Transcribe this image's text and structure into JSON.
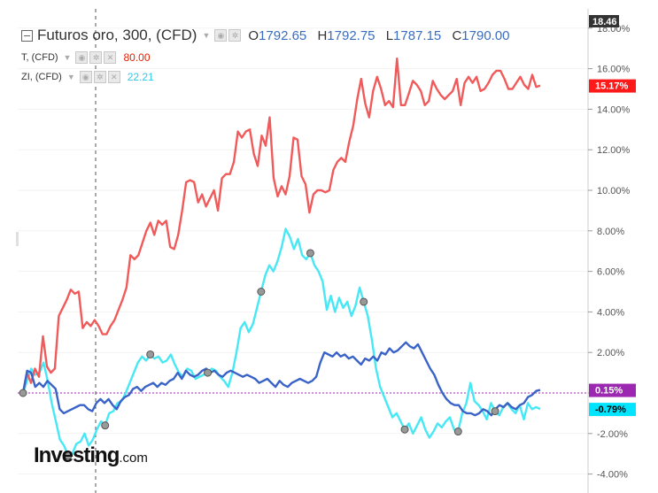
{
  "legend": {
    "main": {
      "symbol": "Futuros oro, 300, (CFD)",
      "o_label": "O",
      "o": "1792.65",
      "h_label": "H",
      "h": "1792.75",
      "l_label": "L",
      "l": "1787.15",
      "c_label": "C",
      "c": "1790.00"
    },
    "series_t": {
      "name": "T, (CFD)",
      "value": "80.00"
    },
    "series_zi": {
      "name": "ZI, (CFD)",
      "value": "22.21"
    }
  },
  "logo": {
    "brand": "Investing",
    "suffix": ".com"
  },
  "colors": {
    "gold": "#3a63c8",
    "t": "#f05a5a",
    "zi": "#46e8f5",
    "zero": "#9c27b0",
    "t_badge": "#ff1a1a",
    "zi_badge": "#00e5ff",
    "zero_badge": "#9c27b0"
  },
  "chart_data": {
    "type": "line",
    "y_unit": "%",
    "ylim": [
      -4,
      18
    ],
    "y_ticks": [
      "-4.00%",
      "-2.00%",
      "0.00%",
      "2.00%",
      "4.00%",
      "6.00%",
      "8.00%",
      "10.00%",
      "12.00%",
      "14.00%",
      "16.00%",
      "18.00%"
    ],
    "top_label": "18.46",
    "last_value_labels": [
      {
        "series": "T, (CFD)",
        "text": "15.17%"
      },
      {
        "series": "Futuros oro, 300, (CFD)",
        "text": "0.15%"
      },
      {
        "series": "ZI, (CFD)",
        "text": "-0.79%"
      }
    ],
    "series": [
      {
        "name": "T, (CFD)",
        "color": "#f05a5a",
        "values": [
          0,
          1.0,
          0.5,
          1.2,
          0.8,
          2.8,
          1.3,
          1.0,
          1.2,
          3.8,
          4.2,
          4.6,
          5.1,
          4.9,
          5.0,
          3.2,
          3.5,
          3.3,
          3.6,
          3.3,
          2.9,
          2.9,
          3.3,
          3.6,
          4.1,
          4.6,
          5.2,
          6.8,
          6.6,
          6.8,
          7.4,
          8.0,
          8.4,
          7.8,
          8.5,
          8.3,
          8.5,
          7.2,
          7.1,
          7.8,
          9.0,
          10.4,
          10.5,
          10.4,
          9.4,
          9.8,
          9.2,
          9.6,
          10.0,
          9.0,
          10.6,
          10.8,
          10.8,
          11.4,
          12.9,
          12.6,
          12.9,
          13.0,
          11.8,
          11.2,
          12.7,
          12.2,
          13.6,
          10.6,
          9.7,
          10.2,
          9.8,
          10.7,
          12.6,
          12.5,
          10.7,
          10.3,
          8.9,
          9.8,
          10.0,
          10.0,
          9.9,
          10.0,
          11.0,
          11.4,
          11.6,
          11.4,
          12.4,
          13.2,
          14.5,
          15.5,
          14.3,
          13.6,
          14.9,
          15.6,
          15.0,
          14.2,
          14.4,
          14.1,
          16.5,
          14.2,
          14.2,
          14.8,
          15.4,
          15.2,
          14.9,
          14.2,
          14.4,
          15.4,
          15.0,
          14.7,
          14.5,
          14.7,
          14.9,
          15.5,
          14.2,
          15.3,
          15.6,
          15.3,
          15.6,
          14.9,
          15.0,
          15.3,
          15.7,
          15.9,
          15.9,
          15.5,
          15.0,
          15.0,
          15.3,
          15.6,
          15.2,
          15.0,
          15.7,
          15.1,
          15.17
        ]
      },
      {
        "name": "Futuros oro, 300, (CFD)",
        "color": "#3a63c8",
        "values": [
          0,
          1.1,
          1.0,
          0.3,
          0.5,
          0.3,
          0.6,
          0.4,
          0.2,
          -0.8,
          -1.0,
          -0.9,
          -0.8,
          -0.7,
          -0.6,
          -0.6,
          -0.8,
          -0.9,
          -0.5,
          -0.3,
          -0.5,
          -0.3,
          -0.6,
          -0.8,
          -0.4,
          -0.2,
          -0.1,
          0.2,
          0.3,
          0.1,
          0.3,
          0.4,
          0.5,
          0.3,
          0.5,
          0.4,
          0.6,
          0.7,
          1.0,
          0.7,
          1.1,
          0.9,
          0.8,
          0.9,
          1.1,
          1.2,
          1.0,
          1.1,
          0.9,
          0.8,
          1.0,
          1.1,
          1.0,
          0.9,
          0.8,
          0.9,
          0.8,
          0.7,
          0.5,
          0.6,
          0.7,
          0.5,
          0.3,
          0.6,
          0.4,
          0.3,
          0.5,
          0.6,
          0.7,
          0.6,
          0.5,
          0.6,
          0.8,
          1.5,
          2.0,
          1.9,
          1.8,
          2.0,
          1.8,
          1.9,
          1.7,
          1.8,
          1.6,
          1.4,
          1.7,
          1.6,
          1.8,
          1.6,
          2.0,
          1.9,
          2.2,
          2.0,
          2.1,
          2.3,
          2.5,
          2.3,
          2.2,
          2.4,
          2.0,
          1.6,
          1.2,
          0.9,
          0.4,
          0.0,
          -0.3,
          -0.5,
          -0.6,
          -0.6,
          -0.9,
          -1.0,
          -1.0,
          -1.1,
          -1.0,
          -0.8,
          -0.9,
          -1.1,
          -0.8,
          -0.6,
          -0.7,
          -0.5,
          -0.7,
          -0.8,
          -0.6,
          -0.5,
          -0.2,
          -0.1,
          0.1,
          0.15
        ]
      },
      {
        "name": "ZI, (CFD)",
        "color": "#46e8f5",
        "values": [
          0,
          0.6,
          1.2,
          0.9,
          1.0,
          1.5,
          0.6,
          -0.5,
          -1.4,
          -2.3,
          -2.6,
          -3.1,
          -3.0,
          -2.5,
          -2.4,
          -2.0,
          -2.6,
          -2.3,
          -1.8,
          -1.4,
          -1.6,
          -1.0,
          -0.9,
          -0.5,
          -0.4,
          0.0,
          0.5,
          1.0,
          1.5,
          1.8,
          1.6,
          1.9,
          1.7,
          1.8,
          1.5,
          1.6,
          1.9,
          1.4,
          1.0,
          0.8,
          1.2,
          1.1,
          0.7,
          0.8,
          0.9,
          1.0,
          1.2,
          1.1,
          0.8,
          0.6,
          0.3,
          1.0,
          2.0,
          3.2,
          3.5,
          3.0,
          3.4,
          4.2,
          5.0,
          5.8,
          6.3,
          6.0,
          6.5,
          7.2,
          8.1,
          7.7,
          7.1,
          7.6,
          6.8,
          6.6,
          6.9,
          6.3,
          6.0,
          5.5,
          4.1,
          4.8,
          4.0,
          4.7,
          4.2,
          4.5,
          3.8,
          4.3,
          5.2,
          4.5,
          3.8,
          2.6,
          1.2,
          0.3,
          -0.2,
          -0.7,
          -1.2,
          -1.0,
          -1.4,
          -1.8,
          -1.5,
          -2.0,
          -1.6,
          -1.2,
          -1.8,
          -2.2,
          -1.9,
          -1.5,
          -1.7,
          -1.4,
          -1.2,
          -1.8,
          -1.9,
          -1.0,
          -0.5,
          0.5,
          -0.4,
          -0.6,
          -0.9,
          -1.3,
          -0.5,
          -0.9,
          -1.1,
          -0.7,
          -0.5,
          -0.8,
          -1.0,
          -0.6,
          -1.3,
          -0.5,
          -0.8,
          -0.7,
          -0.79
        ]
      }
    ],
    "marker_positions": [
      0,
      0.085,
      0.16,
      0.245,
      0.36,
      0.46,
      0.555,
      0.655,
      0.735,
      0.84,
      0.915
    ]
  }
}
